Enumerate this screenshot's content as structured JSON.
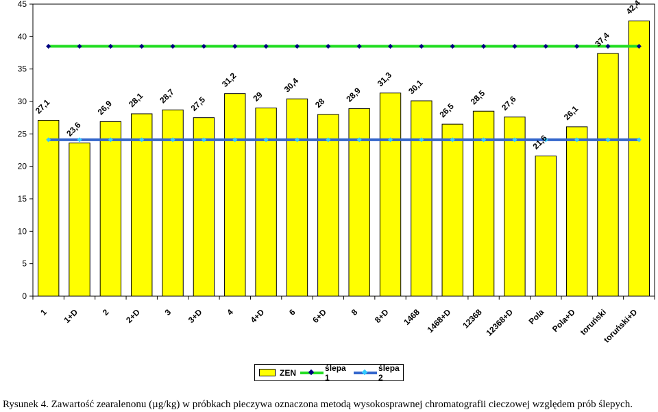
{
  "chart_data": {
    "type": "bar",
    "categories": [
      "1",
      "1+D",
      "2",
      "2+D",
      "3",
      "3+D",
      "4",
      "4+D",
      "6",
      "6+D",
      "8",
      "8+D",
      "1468",
      "1468+D",
      "12368",
      "12368+D",
      "Pola",
      "Pola+D",
      "toruński",
      "toruński+D"
    ],
    "series": [
      {
        "name": "ZEN",
        "type": "bar",
        "color": "#ffff00",
        "values": [
          27.1,
          23.6,
          26.9,
          28.1,
          28.7,
          27.5,
          31.2,
          29,
          30.4,
          28,
          28.9,
          31.3,
          30.1,
          26.5,
          28.5,
          27.6,
          21.6,
          26.1,
          37.4,
          42.4
        ],
        "labels": [
          "27,1",
          "23,6",
          "26,9",
          "28,1",
          "28,7",
          "27,5",
          "31,2",
          "29",
          "30,4",
          "28",
          "28,9",
          "31,3",
          "30,1",
          "26,5",
          "28,5",
          "27,6",
          "21,6",
          "26,1",
          "37,4",
          "42,4"
        ]
      },
      {
        "name": "ślepa 1",
        "type": "line",
        "color": "#22dd22",
        "marker_color": "#000080",
        "value": 38.5
      },
      {
        "name": "ślepa 2",
        "type": "line",
        "color": "#3366cc",
        "marker_color": "#33ccff",
        "value": 24.1
      }
    ],
    "ylim": [
      0,
      45
    ],
    "yticks": [
      0,
      5,
      10,
      15,
      20,
      25,
      30,
      35,
      40,
      45
    ],
    "xlabel": "",
    "ylabel": "",
    "grid": false,
    "legend": "bottom",
    "plot_background": "#ffffff"
  },
  "legend": {
    "zen": "ZEN",
    "slepa1": "ślepa 1",
    "slepa2": "ślepa 2"
  },
  "caption": "Rysunek 4. Zawartość zearalenonu (µg/kg) w próbkach pieczywa oznaczona metodą wysokosprawnej chromatografii cieczowej względem prób ślepych."
}
